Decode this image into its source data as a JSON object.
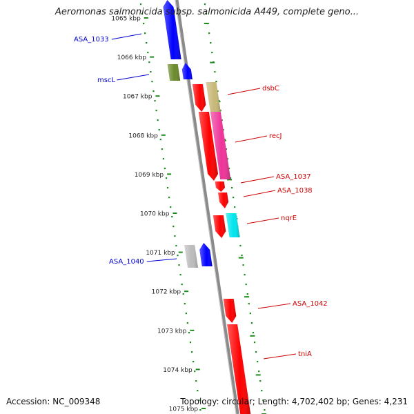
{
  "header": {
    "title": "Aeromonas salmonicida subsp. salmonicida A449, complete geno..."
  },
  "footer": {
    "accession": "Accession: NC_009348",
    "stats": "Topology: circular; Length: 4,702,402 bp; Genes: 4,231"
  },
  "colors": {
    "backbone": "#8a8a8a",
    "scale_dots": "#1a8a1a",
    "forward_label": "#0000cc",
    "reverse_label": "#cc0000"
  },
  "scale_ticks": [
    {
      "kbp": 1065,
      "label": "1065 kbp"
    },
    {
      "kbp": 1066,
      "label": "1066 kbp"
    },
    {
      "kbp": 1067,
      "label": "1067 kbp"
    },
    {
      "kbp": 1068,
      "label": "1068 kbp"
    },
    {
      "kbp": 1069,
      "label": "1069 kbp"
    },
    {
      "kbp": 1070,
      "label": "1070 kbp"
    },
    {
      "kbp": 1071,
      "label": "1071 kbp"
    },
    {
      "kbp": 1072,
      "label": "1072 kbp"
    },
    {
      "kbp": 1073,
      "label": "1073 kbp"
    },
    {
      "kbp": 1074,
      "label": "1074 kbp"
    },
    {
      "kbp": 1075,
      "label": "1075 kbp"
    }
  ],
  "features": [
    {
      "id": "asa-1033",
      "label": "ASA_1033",
      "strand": "forward",
      "color": "#0000ff",
      "labeled": true
    },
    {
      "id": "mscl-cds",
      "label": "mscL",
      "strand": "forward",
      "color": "#6a8a2a",
      "labeled": true
    },
    {
      "id": "mscl",
      "label": "mscL",
      "strand": "forward",
      "color": "#0000ff",
      "labeled": false
    },
    {
      "id": "dsbc-cds",
      "label": "dsbC",
      "strand": "reverse",
      "color": "#c8b878",
      "labeled": true
    },
    {
      "id": "dsbc",
      "label": "dsbC",
      "strand": "reverse",
      "color": "#ff0000",
      "labeled": false
    },
    {
      "id": "recj-cds",
      "label": "recJ",
      "strand": "reverse",
      "color": "#ee3399",
      "labeled": true
    },
    {
      "id": "recj",
      "label": "recJ",
      "strand": "reverse",
      "color": "#ff0000",
      "labeled": false
    },
    {
      "id": "asa-1037",
      "label": "ASA_1037",
      "strand": "reverse",
      "color": "#ff0000",
      "labeled": true
    },
    {
      "id": "asa-1038",
      "label": "ASA_1038",
      "strand": "reverse",
      "color": "#ff0000",
      "labeled": true
    },
    {
      "id": "nqre-cds",
      "label": "nqrE",
      "strand": "reverse",
      "color": "#00e5ee",
      "labeled": true
    },
    {
      "id": "nqre",
      "label": "nqrE",
      "strand": "reverse",
      "color": "#ff0000",
      "labeled": false
    },
    {
      "id": "asa-1040-cds",
      "label": "ASA_1040",
      "strand": "forward",
      "color": "#bbbbbb",
      "labeled": true
    },
    {
      "id": "asa-1040",
      "label": "ASA_1040",
      "strand": "forward",
      "color": "#0000ff",
      "labeled": false
    },
    {
      "id": "asa-1042",
      "label": "ASA_1042",
      "strand": "reverse",
      "color": "#ff0000",
      "labeled": true
    },
    {
      "id": "tnia",
      "label": "tniA",
      "strand": "reverse",
      "color": "#ff0000",
      "labeled": true
    }
  ]
}
